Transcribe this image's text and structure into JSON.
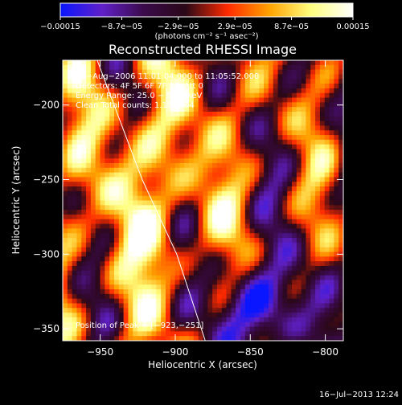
{
  "chart_data": {
    "type": "heatmap",
    "title": "Reconstructed RHESSI Image",
    "xlabel": "Heliocentric X (arcsec)",
    "ylabel": "Heliocentric Y (arcsec)",
    "xlim": [
      -975,
      -788
    ],
    "ylim": [
      -358,
      -170
    ],
    "xticks": [
      -950,
      -900,
      -850,
      -800
    ],
    "xtick_labels": [
      "−950",
      "−900",
      "−850",
      "−800"
    ],
    "yticks": [
      -200,
      -250,
      -300,
      -350
    ],
    "ytick_labels": [
      "−200",
      "−250",
      "−300",
      "−350"
    ],
    "colorbar": {
      "min": -0.00015,
      "max": 0.00015,
      "ticks": [
        -0.00015,
        -8.7e-05,
        -2.9e-05,
        2.9e-05,
        8.7e-05,
        0.00015
      ],
      "tick_labels": [
        "−0.00015",
        "−8.7e−05",
        "−2.9e−05",
        "2.9e−05",
        "8.7e−05",
        "0.00015"
      ],
      "units_label": "(photons cm⁻² s⁻¹ asec⁻²)",
      "colors": [
        "#0a16ff",
        "#6020c8",
        "#3a0a4a",
        "#2a0818",
        "#ff2a00",
        "#ffa200",
        "#ffff80",
        "#ffffff"
      ]
    },
    "info_lines": [
      "10−Aug−2006 11:01:04.000 to 11:05:52.000",
      "Detectors: 4F 5F 6F 7F 8F, Att 0",
      "Energy Range: 25.0 − 50.0 keV",
      "Clean    Total counts: 1.15E+04"
    ],
    "peak_label": "Position of Peak = [−923,−251]",
    "peak": {
      "x": -923,
      "y": -251
    },
    "limb": [
      {
        "x": -952,
        "y": -170
      },
      {
        "x": -922,
        "y": -250
      },
      {
        "x": -899,
        "y": -300
      },
      {
        "x": -880,
        "y": -358
      }
    ],
    "timestamp": "16−Jul−2013 12:24"
  }
}
